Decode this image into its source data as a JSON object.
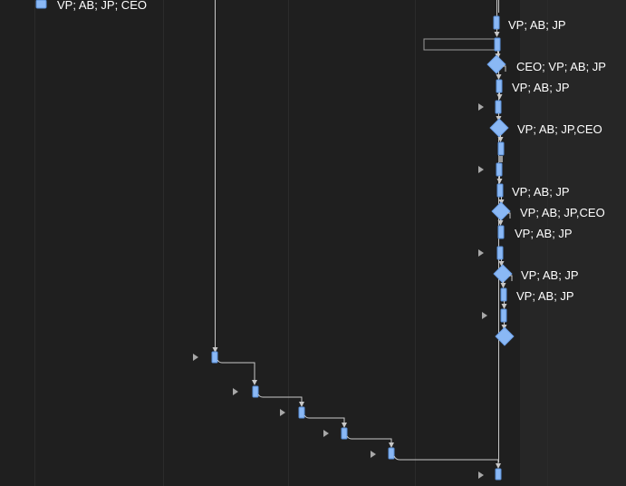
{
  "colors": {
    "background": "#1f1f1f",
    "shaded_column": "#262626",
    "grid_line": "#2b2b2b",
    "task_fill": "#8ab8f5",
    "connector": "#c8c8c8",
    "label_text": "#ffffff"
  },
  "labels": {
    "top_left": "VP; AB; JP; CEO",
    "r1": "VP; AB; JP",
    "m1": "CEO; VP; AB; JP",
    "r2": "VP; AB; JP",
    "m2": "VP; AB; JP,CEO",
    "r3": "VP; AB; JP",
    "m3": "VP; AB; JP,CEO",
    "r4": "VP; AB; JP",
    "m4": "VP; AB; JP",
    "r5": "VP; AB; JP"
  }
}
